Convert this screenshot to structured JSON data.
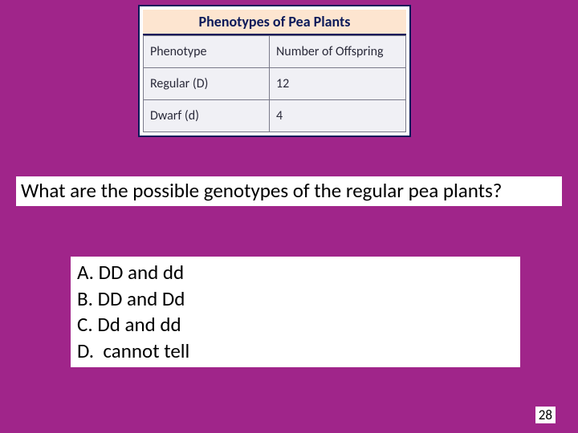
{
  "colors": {
    "slide_bg": "#a0258a",
    "table_border": "#0b1a5a",
    "title_bg": "#fde5d0",
    "title_text": "#0b1a5a",
    "cell_bg": "#f0f0f5",
    "cell_border": "#7a7a8a",
    "cell_text": "#2a2a3a",
    "textbox_bg": "#ffffff",
    "textbox_text": "#000000"
  },
  "table": {
    "title": "Phenotypes of Pea Plants",
    "title_fontsize": 18,
    "cell_fontsize": 16,
    "columns": [
      "Phenotype",
      "Number of Offspring"
    ],
    "rows": [
      [
        "Regular (D)",
        "12"
      ],
      [
        "Dwarf (d)",
        "4"
      ]
    ]
  },
  "question": {
    "text": "What are the possible genotypes of the regular pea plants?",
    "fontsize": 25
  },
  "answers": {
    "fontsize": 25,
    "items": [
      {
        "label": "A.",
        "text": "DD and dd"
      },
      {
        "label": "B.",
        "text": "DD and Dd"
      },
      {
        "label": "C.",
        "text": "Dd and dd"
      },
      {
        "label": "D.",
        "text": " cannot tell"
      }
    ]
  },
  "page_number": "28"
}
